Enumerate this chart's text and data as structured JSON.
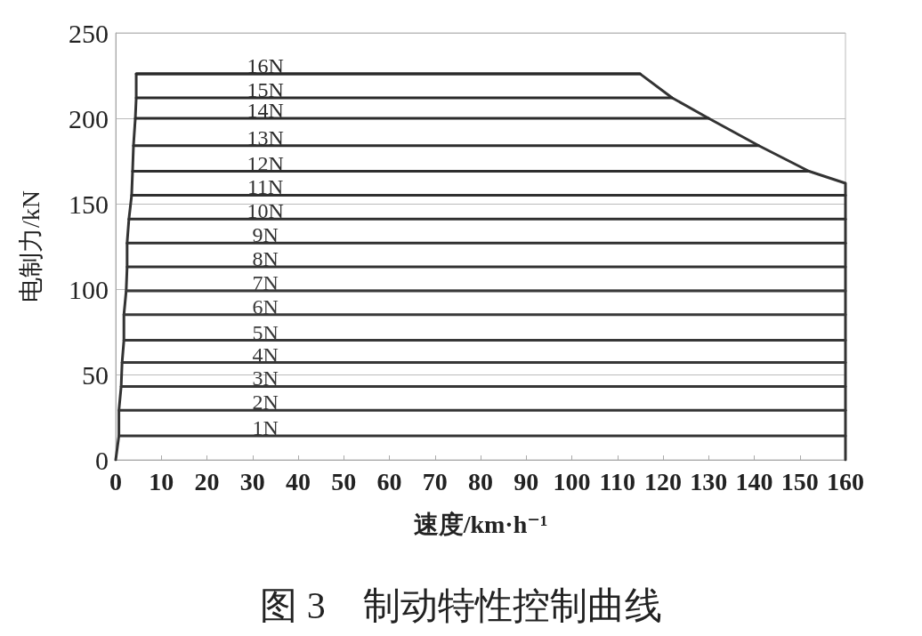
{
  "chart_data": {
    "type": "line",
    "title": "图 3　制动特性控制曲线",
    "xlabel": "速度/km·h⁻¹",
    "ylabel": "电制力/kN",
    "xlim": [
      0,
      160
    ],
    "xticks": [
      0,
      10,
      20,
      30,
      40,
      50,
      60,
      70,
      80,
      90,
      100,
      110,
      120,
      130,
      140,
      150,
      160
    ],
    "ylim": [
      0,
      250
    ],
    "yticks": [
      0,
      50,
      100,
      150,
      200,
      250
    ],
    "grid": "y",
    "legend": false,
    "marker": "none",
    "line_style": "solid",
    "series": [
      {
        "color": "#333333",
        "x": [
          0,
          0.7,
          0.7,
          1.2,
          1.4,
          1.8,
          1.8,
          2.3,
          2.5,
          2.5,
          2.9,
          3.5,
          3.7,
          3.9,
          4.3,
          4.5,
          4.5,
          115,
          122,
          130,
          141,
          152,
          160,
          160
        ],
        "values": [
          0,
          14,
          29,
          43,
          57,
          70,
          85,
          99,
          113,
          127,
          141,
          155,
          169,
          184,
          200,
          212,
          226,
          226,
          212,
          200,
          184,
          169,
          162,
          0
        ]
      },
      {
        "name": "1N",
        "color": "#343434",
        "x": [
          0.7,
          160
        ],
        "values": [
          14,
          14
        ]
      },
      {
        "name": "2N",
        "color": "#353535",
        "x": [
          0.7,
          160
        ],
        "values": [
          29,
          29
        ]
      },
      {
        "name": "3N",
        "color": "#363636",
        "x": [
          1.2,
          160
        ],
        "values": [
          43,
          43
        ]
      },
      {
        "name": "4N",
        "color": "#373737",
        "x": [
          1.4,
          160
        ],
        "values": [
          57,
          57
        ]
      },
      {
        "name": "5N",
        "color": "#383838",
        "x": [
          1.8,
          160
        ],
        "values": [
          70,
          70
        ]
      },
      {
        "name": "6N",
        "color": "#393939",
        "x": [
          1.8,
          160
        ],
        "values": [
          85,
          85
        ]
      },
      {
        "name": "7N",
        "color": "#3a3a3a",
        "x": [
          2.3,
          160
        ],
        "values": [
          99,
          99
        ]
      },
      {
        "name": "8N",
        "color": "#323232",
        "x": [
          2.5,
          160
        ],
        "values": [
          113,
          113
        ]
      },
      {
        "name": "9N",
        "color": "#313131",
        "x": [
          2.5,
          160
        ],
        "values": [
          127,
          127
        ]
      },
      {
        "name": "10N",
        "color": "#303030",
        "x": [
          2.9,
          160
        ],
        "values": [
          141,
          141
        ]
      },
      {
        "name": "11N",
        "color": "#2f2f2f",
        "x": [
          3.5,
          160
        ],
        "values": [
          155,
          155
        ]
      },
      {
        "name": "12N",
        "color": "#2e2e2e",
        "x": [
          3.7,
          152
        ],
        "values": [
          169,
          169
        ]
      },
      {
        "name": "13N",
        "color": "#2d2d2d",
        "x": [
          3.9,
          141
        ],
        "values": [
          184,
          184
        ]
      },
      {
        "name": "14N",
        "color": "#2c2c2c",
        "x": [
          4.3,
          130
        ],
        "values": [
          200,
          200
        ]
      },
      {
        "name": "15N",
        "color": "#2b2b2b",
        "x": [
          4.5,
          122
        ],
        "values": [
          212,
          212
        ]
      },
      {
        "name": "16N",
        "color": "#2a2a2a",
        "x": [
          4.5,
          115
        ],
        "values": [
          226,
          226
        ]
      }
    ]
  }
}
